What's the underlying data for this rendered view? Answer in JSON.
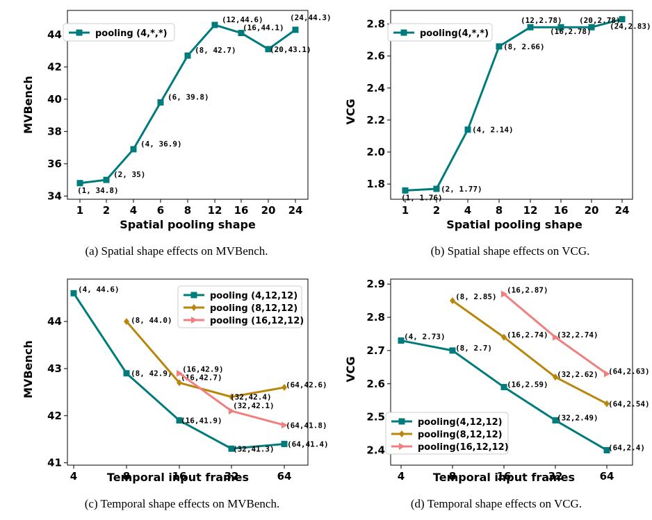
{
  "colors": {
    "teal": "#007b7b",
    "gold": "#b8860b",
    "salmon": "#f08080"
  },
  "chart_data": [
    {
      "id": "a",
      "type": "line",
      "caption": "(a)  Spatial shape effects on MVBench.",
      "xlabel": "Spatial pooling shape",
      "ylabel": "MVBench",
      "categories": [
        "1",
        "2",
        "4",
        "6",
        "8",
        "12",
        "16",
        "20",
        "24"
      ],
      "ylim": [
        33.8,
        45.5
      ],
      "yticks": [
        34,
        36,
        38,
        40,
        42,
        44
      ],
      "ytick_labels": [
        "34",
        "36",
        "38",
        "40",
        "42",
        "44"
      ],
      "legend_position": "upper-left",
      "series": [
        {
          "name": "pooling (4,*,*)",
          "color": "teal",
          "marker": "square",
          "values": [
            34.8,
            35.0,
            36.9,
            39.8,
            42.7,
            44.6,
            44.1,
            43.1,
            44.3
          ],
          "labels": [
            "(1,  34.8)",
            "(2,  35)",
            "(4,  36.9)",
            "(6,  39.8)",
            "(8,  42.7)",
            "(12,44.6)",
            "(16,44.1)",
            "(20,43.1)",
            "(24,44.3)"
          ]
        }
      ]
    },
    {
      "id": "b",
      "type": "line",
      "caption": "(b)  Spatial shape effects on VCG.",
      "xlabel": "Spatial pooling shape",
      "ylabel": "VCG",
      "categories": [
        "1",
        "2",
        "4",
        "8",
        "12",
        "16",
        "20",
        "24"
      ],
      "ylim": [
        1.705,
        2.885
      ],
      "yticks": [
        1.8,
        2.0,
        2.2,
        2.4,
        2.6,
        2.8
      ],
      "ytick_labels": [
        "1.8",
        "2.0",
        "2.2",
        "2.4",
        "2.6",
        "2.8"
      ],
      "legend_position": "upper-left",
      "series": [
        {
          "name": "pooling(4,*,*)",
          "color": "teal",
          "marker": "square",
          "values": [
            1.76,
            1.77,
            2.14,
            2.66,
            2.78,
            2.78,
            2.78,
            2.83
          ],
          "labels": [
            "(1,  1.76)",
            "(2,  1.77)",
            "(4,  2.14)",
            "(8,  2.66)",
            "(12,2.78)",
            "(16,2.78)",
            "(20,2.78)",
            "(24,2.83)"
          ]
        }
      ]
    },
    {
      "id": "c",
      "type": "line",
      "caption": "(c)  Temporal shape effects on MVBench.",
      "xlabel": "Temporal input frames",
      "ylabel": "MVBench",
      "categories": [
        "4",
        "8",
        "16",
        "32",
        "64"
      ],
      "ylim": [
        40.95,
        44.9
      ],
      "yticks": [
        41,
        42,
        43,
        44
      ],
      "ytick_labels": [
        "41",
        "42",
        "43",
        "44"
      ],
      "legend_position": "upper-right",
      "series": [
        {
          "name": "pooling (4,12,12)",
          "color": "teal",
          "marker": "square",
          "values": [
            44.6,
            42.9,
            41.9,
            41.3,
            41.4
          ],
          "labels": [
            "(4,  44.6)",
            "(8,  42.9)",
            "(16,41.9)",
            "(32,41.3)",
            "(64,41.4)"
          ]
        },
        {
          "name": "pooling (8,12,12)",
          "color": "gold",
          "marker": "diamond",
          "values": [
            null,
            44.0,
            42.7,
            42.4,
            42.6
          ],
          "labels": [
            "",
            "(8,  44.0)",
            "(16,42.7)",
            "(32,42.4)",
            "(64,42.6)"
          ]
        },
        {
          "name": "pooling (16,12,12)",
          "color": "salmon",
          "marker": "triangle-right",
          "values": [
            null,
            null,
            42.9,
            42.1,
            41.8
          ],
          "labels": [
            "",
            "",
            "(16,42.9)",
            "(32,42.1)",
            "(64,41.8)"
          ]
        }
      ]
    },
    {
      "id": "d",
      "type": "line",
      "caption": "(d)  Temporal shape effects on VCG.",
      "xlabel": "Temporal input frames",
      "ylabel": "VCG",
      "categories": [
        "4",
        "8",
        "16",
        "32",
        "64"
      ],
      "ylim": [
        2.355,
        2.915
      ],
      "yticks": [
        2.4,
        2.5,
        2.6,
        2.7,
        2.8,
        2.9
      ],
      "ytick_labels": [
        "2.4",
        "2.5",
        "2.6",
        "2.7",
        "2.8",
        "2.9"
      ],
      "legend_position": "lower-left",
      "series": [
        {
          "name": "pooling(4,12,12)",
          "color": "teal",
          "marker": "square",
          "values": [
            2.73,
            2.7,
            2.59,
            2.49,
            2.4
          ],
          "labels": [
            "(4,  2.73)",
            "(8,  2.7)",
            "(16,2.59)",
            "(32,2.49)",
            "(64,2.4)"
          ]
        },
        {
          "name": "pooling(8,12,12)",
          "color": "gold",
          "marker": "diamond",
          "values": [
            null,
            2.85,
            2.74,
            2.62,
            2.54
          ],
          "labels": [
            "",
            "(8,  2.85)",
            "(16,2.74)",
            "(32,2.62)",
            "(64,2.54)"
          ]
        },
        {
          "name": "pooling(16,12,12)",
          "color": "salmon",
          "marker": "triangle-right",
          "values": [
            null,
            null,
            2.87,
            2.74,
            2.63
          ],
          "labels": [
            "",
            "",
            "(16,2.87)",
            "(32,2.74)",
            "(64,2.63)"
          ]
        }
      ]
    }
  ]
}
